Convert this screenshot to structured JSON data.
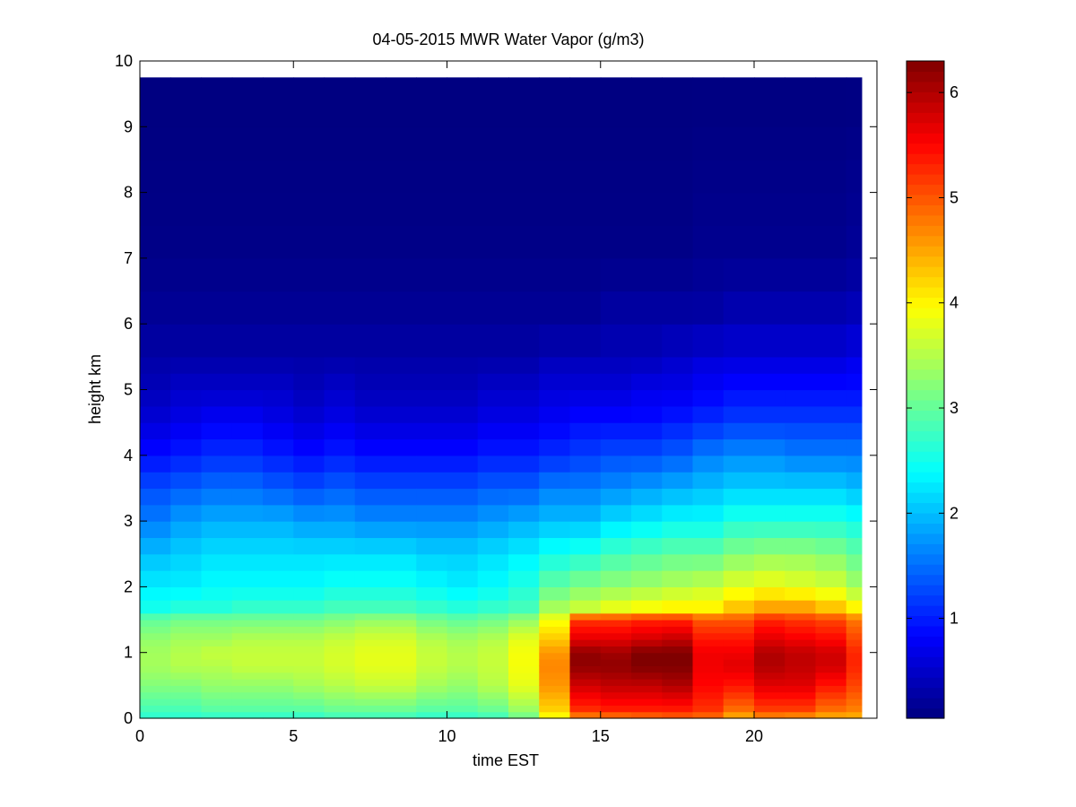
{
  "chart_data": {
    "type": "heatmap",
    "title": "04-05-2015 MWR Water Vapor (g/m3)",
    "xlabel": "time EST",
    "ylabel": "height km",
    "xlim": [
      0,
      24
    ],
    "ylim": [
      0,
      10
    ],
    "x_ticks": [
      0,
      5,
      10,
      15,
      20
    ],
    "y_ticks": [
      0,
      1,
      2,
      3,
      4,
      5,
      6,
      7,
      8,
      9,
      10
    ],
    "colorbar": {
      "colormap": "jet",
      "clim": [
        0.05,
        6.3
      ],
      "ticks": [
        1,
        2,
        3,
        4,
        5,
        6
      ],
      "low_color": "#00008f",
      "high_color": "#800000"
    },
    "grid": false,
    "x_centers": [
      0.5,
      1.5,
      2.5,
      3.5,
      4.5,
      5.5,
      6.5,
      7.5,
      8.5,
      9.5,
      10.5,
      11.5,
      12.5,
      13.5,
      14.5,
      15.5,
      16.5,
      17.5,
      18.5,
      19.5,
      20.5,
      21.5,
      22.5,
      23.5
    ],
    "data_x_extent": [
      0,
      23.5
    ],
    "data_y_extent": [
      0,
      9.75
    ],
    "height_levels": [
      0.0,
      0.1,
      0.2,
      0.3,
      0.4,
      0.5,
      0.6,
      0.7,
      0.8,
      0.9,
      1.0,
      1.1,
      1.2,
      1.3,
      1.4,
      1.5,
      1.6,
      1.8,
      2.0,
      2.25,
      2.5,
      2.75,
      3.0,
      3.25,
      3.5,
      3.75,
      4.0,
      4.25,
      4.5,
      4.75,
      5.0,
      5.25,
      5.5,
      6.0,
      6.5,
      7.0,
      7.5,
      8.0,
      8.5,
      9.0,
      9.75
    ],
    "profile_points_heights": [
      0.0,
      0.1,
      0.5,
      0.8,
      1.0,
      1.2,
      1.5,
      1.7,
      2.0,
      2.5,
      3.0,
      3.5,
      4.0,
      4.5,
      5.0,
      5.5,
      6.0,
      7.0,
      9.75
    ],
    "profiles": [
      [
        2.6,
        2.8,
        3.2,
        3.4,
        3.4,
        3.3,
        3.0,
        2.5,
        2.3,
        2.0,
        1.6,
        1.3,
        0.9,
        0.6,
        0.4,
        0.3,
        0.2,
        0.1,
        0.05
      ],
      [
        2.6,
        2.8,
        3.2,
        3.5,
        3.5,
        3.4,
        3.1,
        2.6,
        2.3,
        2.1,
        1.8,
        1.4,
        1.0,
        0.7,
        0.5,
        0.3,
        0.2,
        0.1,
        0.05
      ],
      [
        2.6,
        2.9,
        3.3,
        3.5,
        3.6,
        3.4,
        3.1,
        2.6,
        2.4,
        2.2,
        1.9,
        1.5,
        1.1,
        0.8,
        0.5,
        0.3,
        0.2,
        0.1,
        0.05
      ],
      [
        2.6,
        2.9,
        3.3,
        3.6,
        3.6,
        3.5,
        3.1,
        2.7,
        2.4,
        2.2,
        1.9,
        1.5,
        1.1,
        0.8,
        0.5,
        0.3,
        0.2,
        0.1,
        0.05
      ],
      [
        2.6,
        2.9,
        3.3,
        3.6,
        3.6,
        3.5,
        3.1,
        2.7,
        2.4,
        2.2,
        1.9,
        1.4,
        1.0,
        0.7,
        0.5,
        0.3,
        0.2,
        0.1,
        0.05
      ],
      [
        2.6,
        2.9,
        3.4,
        3.6,
        3.6,
        3.5,
        3.1,
        2.7,
        2.4,
        2.2,
        1.8,
        1.3,
        0.9,
        0.6,
        0.4,
        0.3,
        0.2,
        0.1,
        0.05
      ],
      [
        2.7,
        3.0,
        3.5,
        3.7,
        3.7,
        3.6,
        3.2,
        2.8,
        2.5,
        2.2,
        1.8,
        1.4,
        1.0,
        0.7,
        0.5,
        0.3,
        0.2,
        0.1,
        0.05
      ],
      [
        2.7,
        3.0,
        3.6,
        3.8,
        3.8,
        3.7,
        3.3,
        2.8,
        2.5,
        2.2,
        1.7,
        1.3,
        0.9,
        0.6,
        0.4,
        0.3,
        0.2,
        0.1,
        0.05
      ],
      [
        2.7,
        3.0,
        3.6,
        3.8,
        3.8,
        3.7,
        3.3,
        2.8,
        2.5,
        2.2,
        1.7,
        1.3,
        0.9,
        0.6,
        0.4,
        0.3,
        0.2,
        0.1,
        0.05
      ],
      [
        2.6,
        2.9,
        3.4,
        3.6,
        3.6,
        3.5,
        3.1,
        2.7,
        2.4,
        2.1,
        1.7,
        1.3,
        0.9,
        0.6,
        0.4,
        0.3,
        0.2,
        0.1,
        0.05
      ],
      [
        2.6,
        2.9,
        3.3,
        3.5,
        3.5,
        3.4,
        3.0,
        2.6,
        2.3,
        2.1,
        1.7,
        1.3,
        0.9,
        0.6,
        0.4,
        0.3,
        0.2,
        0.1,
        0.05
      ],
      [
        2.7,
        3.0,
        3.5,
        3.6,
        3.6,
        3.5,
        3.1,
        2.7,
        2.4,
        2.2,
        1.8,
        1.4,
        1.0,
        0.7,
        0.5,
        0.3,
        0.2,
        0.1,
        0.05
      ],
      [
        3.0,
        3.3,
        3.8,
        3.9,
        3.9,
        3.8,
        3.3,
        2.8,
        2.6,
        2.3,
        1.9,
        1.4,
        1.0,
        0.7,
        0.5,
        0.3,
        0.2,
        0.1,
        0.05
      ],
      [
        3.8,
        4.2,
        4.6,
        4.7,
        4.6,
        4.3,
        3.9,
        3.4,
        3.0,
        2.5,
        2.0,
        1.6,
        1.1,
        0.8,
        0.6,
        0.4,
        0.2,
        0.1,
        0.05
      ],
      [
        4.5,
        5.2,
        5.8,
        6.2,
        6.2,
        5.7,
        5.2,
        3.6,
        3.2,
        2.6,
        2.0,
        1.6,
        1.2,
        0.9,
        0.6,
        0.4,
        0.2,
        0.1,
        0.05
      ],
      [
        4.6,
        5.3,
        5.9,
        6.2,
        6.1,
        5.7,
        5.2,
        3.8,
        3.3,
        2.8,
        2.2,
        1.7,
        1.3,
        0.9,
        0.6,
        0.4,
        0.3,
        0.1,
        0.05
      ],
      [
        4.7,
        5.3,
        5.9,
        6.3,
        6.3,
        5.8,
        5.3,
        3.9,
        3.4,
        2.9,
        2.3,
        1.8,
        1.3,
        0.9,
        0.7,
        0.4,
        0.3,
        0.1,
        0.05
      ],
      [
        4.8,
        5.3,
        6.0,
        6.3,
        6.3,
        5.9,
        5.3,
        4.0,
        3.5,
        3.0,
        2.4,
        1.9,
        1.4,
        1.0,
        0.7,
        0.5,
        0.3,
        0.1,
        0.05
      ],
      [
        4.7,
        5.2,
        5.5,
        5.6,
        5.6,
        5.4,
        5.0,
        4.0,
        3.6,
        3.0,
        2.4,
        2.0,
        1.6,
        1.1,
        0.8,
        0.6,
        0.3,
        0.15,
        0.05
      ],
      [
        4.3,
        4.8,
        5.4,
        5.7,
        5.6,
        5.4,
        5.0,
        4.3,
        3.8,
        3.2,
        2.6,
        2.1,
        1.7,
        1.2,
        0.9,
        0.6,
        0.4,
        0.15,
        0.05
      ],
      [
        4.5,
        5.1,
        5.7,
        6.0,
        6.0,
        5.7,
        5.3,
        4.5,
        3.9,
        3.3,
        2.6,
        2.1,
        1.7,
        1.2,
        0.9,
        0.6,
        0.4,
        0.15,
        0.05
      ],
      [
        4.4,
        5.1,
        5.7,
        5.9,
        5.9,
        5.6,
        5.2,
        4.5,
        3.8,
        3.3,
        2.6,
        2.1,
        1.6,
        1.2,
        0.9,
        0.6,
        0.4,
        0.15,
        0.05
      ],
      [
        4.3,
        4.8,
        5.4,
        5.8,
        5.8,
        5.5,
        5.1,
        4.3,
        3.7,
        3.2,
        2.6,
        2.1,
        1.6,
        1.2,
        0.9,
        0.6,
        0.4,
        0.15,
        0.05
      ],
      [
        4.3,
        4.7,
        5.1,
        5.3,
        5.3,
        5.1,
        4.8,
        4.0,
        3.4,
        3.0,
        2.5,
        2.0,
        1.6,
        1.2,
        0.9,
        0.7,
        0.45,
        0.2,
        0.05
      ]
    ]
  }
}
